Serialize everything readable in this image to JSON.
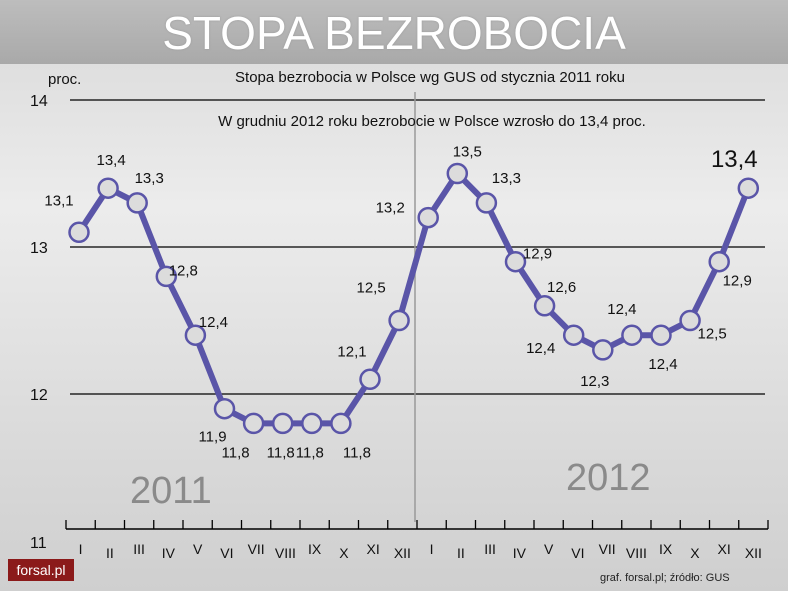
{
  "banner": {
    "title": "STOPA BEZROBOCIA"
  },
  "logo_text": "forsal.pl",
  "credit": "graf. forsal.pl; źródło: GUS",
  "colors": {
    "line": "#5a55a8",
    "marker_fill": "#dcdcdc",
    "marker_stroke": "#5a55a8",
    "grid": "#000000"
  },
  "chart_data": {
    "type": "line",
    "title": "Stopa bezrobocia w Polsce wg GUS od stycznia 2011 roku",
    "subtitle": "W grudniu 2012 roku bezrobocie w Polsce wzrosło do 13,4 proc.",
    "ylabel": "proc.",
    "ylim": [
      11,
      14
    ],
    "yticks": [
      "11",
      "12",
      "13",
      "14"
    ],
    "year_labels": [
      "2011",
      "2012"
    ],
    "categories": [
      "I",
      "II",
      "III",
      "IV",
      "V",
      "VI",
      "VII",
      "VIII",
      "IX",
      "X",
      "XI",
      "XII",
      "I",
      "II",
      "III",
      "IV",
      "V",
      "VI",
      "VII",
      "VIII",
      "IX",
      "X",
      "XI",
      "XII"
    ],
    "values": [
      13.1,
      13.4,
      13.3,
      12.8,
      12.4,
      11.9,
      11.8,
      11.8,
      11.8,
      11.8,
      12.1,
      12.5,
      13.2,
      13.5,
      13.3,
      12.9,
      12.6,
      12.4,
      12.3,
      12.4,
      12.4,
      12.5,
      12.9,
      13.4
    ],
    "value_labels": [
      "13,1",
      "13,4",
      "13,3",
      "12,8",
      "12,4",
      "11,9",
      "11,8",
      "11,8",
      "11,8",
      "11,8",
      "12,1",
      "12,5",
      "13,2",
      "13,5",
      "13,3",
      "12,9",
      "12,6",
      "12,4",
      "12,3",
      "12,4",
      "12,4",
      "12,5",
      "12,9",
      "13,4"
    ],
    "highlight_label": "13,4",
    "grid": true
  }
}
